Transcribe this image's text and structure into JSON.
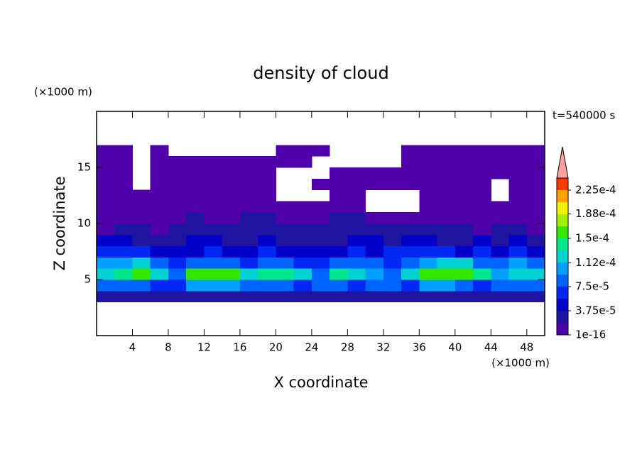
{
  "chart_data": {
    "type": "contour",
    "title": "density of cloud",
    "xlabel": "X coordinate",
    "ylabel": "Z coordinate",
    "x_unit": "(×1000 m)",
    "y_unit": "(×1000 m)",
    "annotation": "t=540000 s",
    "xlim": [
      0,
      50
    ],
    "ylim": [
      0,
      20
    ],
    "xticks": [
      4,
      8,
      12,
      16,
      20,
      24,
      28,
      32,
      36,
      40,
      44,
      48
    ],
    "yticks": [
      5,
      10,
      15
    ],
    "x": [
      1,
      3,
      5,
      7,
      9,
      11,
      13,
      15,
      17,
      19,
      21,
      23,
      25,
      27,
      29,
      31,
      33,
      35,
      37,
      39,
      41,
      43,
      45,
      47,
      49
    ],
    "y": [
      3.5,
      4.5,
      5.5,
      6.5,
      7.5,
      8.5,
      9.5,
      10.5,
      11.5,
      12.5,
      13.5,
      14.5,
      15.5,
      16.5
    ],
    "values": [
      [
        2e-05,
        2e-05,
        2e-05,
        2e-05,
        2e-05,
        2e-05,
        2e-05,
        2e-05,
        2e-05,
        2e-05,
        2e-05,
        2e-05,
        2e-05,
        2e-05,
        2e-05,
        2e-05,
        2e-05,
        2e-05,
        2e-05,
        2e-05,
        2e-05,
        2e-05,
        2e-05,
        2e-05,
        2e-05
      ],
      [
        8e-05,
        9e-05,
        8e-05,
        7e-05,
        6e-05,
        0.0001,
        0.0001,
        0.0001,
        9e-05,
        8e-05,
        9e-05,
        7e-05,
        9e-05,
        8e-05,
        7e-05,
        9e-05,
        8e-05,
        7e-05,
        0.0001,
        0.0001,
        9e-05,
        7e-05,
        8e-05,
        9e-05,
        8e-05
      ],
      [
        0.00013,
        0.00014,
        0.00015,
        0.00012,
        9e-05,
        0.000155,
        0.000165,
        0.00016,
        0.00012,
        0.000145,
        0.00014,
        0.00012,
        8e-05,
        0.000135,
        0.00013,
        0.00011,
        9e-05,
        0.00012,
        0.00015,
        0.000155,
        0.00015,
        0.00014,
        0.00011,
        0.00013,
        0.00012
      ],
      [
        0.0001,
        0.00011,
        0.00012,
        9e-05,
        7e-05,
        8e-05,
        9e-05,
        8e-05,
        7e-05,
        9e-05,
        8e-05,
        7e-05,
        6e-05,
        8e-05,
        9e-05,
        8e-05,
        7e-05,
        9e-05,
        0.00011,
        0.00012,
        0.000115,
        9e-05,
        8e-05,
        0.0001,
        9e-05
      ],
      [
        6e-05,
        7e-05,
        6e-05,
        5e-05,
        5e-05,
        5e-05,
        6e-05,
        5e-05,
        5e-05,
        6e-05,
        5e-05,
        4e-05,
        4e-05,
        5e-05,
        6e-05,
        5e-05,
        6e-05,
        6e-05,
        7e-05,
        6e-05,
        5e-05,
        6e-05,
        5e-05,
        6e-05,
        5e-05
      ],
      [
        4e-05,
        4.5e-05,
        3.5e-05,
        3e-05,
        3e-05,
        4e-05,
        4e-05,
        3e-05,
        3e-05,
        4e-05,
        3e-05,
        3e-05,
        3e-05,
        3e-05,
        4e-05,
        4e-05,
        3e-05,
        4e-05,
        4e-05,
        3e-05,
        3e-05,
        4e-05,
        3e-05,
        4e-05,
        3e-05
      ],
      [
        1.5e-05,
        2e-05,
        2e-05,
        1.5e-05,
        2e-05,
        2.5e-05,
        2e-05,
        2e-05,
        2.5e-05,
        3e-05,
        2.5e-05,
        2e-05,
        2.5e-05,
        2e-05,
        2.5e-05,
        3e-05,
        2.5e-05,
        2e-05,
        2e-05,
        2.5e-05,
        2e-05,
        1.5e-05,
        2e-05,
        2e-05,
        1.5e-05
      ],
      [
        1e-05,
        1e-05,
        1.5e-05,
        1e-05,
        1e-05,
        2e-05,
        1.5e-05,
        1e-05,
        2e-05,
        2e-05,
        1.5e-05,
        1e-05,
        1e-05,
        2e-05,
        2e-05,
        1.5e-05,
        1e-05,
        1e-05,
        1e-05,
        1.5e-05,
        1e-05,
        1e-05,
        1e-05,
        1e-05,
        1e-05
      ],
      [
        1e-16,
        1e-16,
        1e-16,
        1e-16,
        1e-16,
        1e-16,
        1e-16,
        1e-16,
        1e-16,
        1e-16,
        1e-16,
        1e-16,
        1e-16,
        1e-16,
        1e-16,
        null,
        null,
        null,
        1e-16,
        1e-16,
        1e-16,
        1e-16,
        1e-16,
        1e-16,
        1e-16
      ],
      [
        1e-16,
        1e-16,
        1e-16,
        1e-16,
        1e-16,
        1e-16,
        1e-16,
        1e-16,
        1e-16,
        1e-16,
        null,
        null,
        null,
        1e-16,
        1e-16,
        null,
        null,
        null,
        1e-16,
        1e-16,
        1e-16,
        1e-16,
        null,
        1e-16,
        1e-16
      ],
      [
        1e-16,
        1e-16,
        null,
        1e-16,
        1e-16,
        1e-16,
        1e-16,
        1e-16,
        1e-16,
        1e-16,
        null,
        null,
        1e-16,
        1e-16,
        1e-16,
        1e-16,
        1e-16,
        1e-16,
        1e-16,
        1e-16,
        1e-16,
        1e-16,
        null,
        1e-16,
        1e-16
      ],
      [
        1e-16,
        1e-16,
        null,
        1e-16,
        1e-16,
        1e-16,
        1e-16,
        1e-16,
        1e-16,
        1e-16,
        null,
        null,
        null,
        1e-16,
        1e-16,
        1e-16,
        1e-16,
        1e-16,
        1e-16,
        1e-16,
        1e-16,
        1e-16,
        1e-16,
        1e-16,
        1e-16
      ],
      [
        1e-16,
        1e-16,
        null,
        1e-16,
        1e-16,
        1e-16,
        1e-16,
        1e-16,
        1e-16,
        1e-16,
        1e-16,
        1e-16,
        null,
        null,
        null,
        null,
        null,
        1e-16,
        1e-16,
        1e-16,
        1e-16,
        1e-16,
        1e-16,
        1e-16,
        1e-16
      ],
      [
        1e-16,
        1e-16,
        null,
        1e-16,
        null,
        null,
        null,
        null,
        null,
        null,
        1e-16,
        1e-16,
        1e-16,
        null,
        null,
        null,
        null,
        1e-16,
        1e-16,
        1e-16,
        1e-16,
        1e-16,
        1e-16,
        1e-16,
        1e-16
      ]
    ],
    "levels": [
      1e-16,
      1.875e-05,
      3.75e-05,
      5.625e-05,
      7.5e-05,
      9.375e-05,
      0.0001125,
      0.00013125,
      0.00015,
      0.00016875,
      0.0001875,
      0.00020625,
      0.000225,
      0.00024375
    ],
    "colors": [
      "#5000a8",
      "#1e14a0",
      "#0000c8",
      "#0028f0",
      "#0064ff",
      "#00a0ff",
      "#00d2d2",
      "#00e68c",
      "#32e600",
      "#a0f000",
      "#f0f000",
      "#ffa000",
      "#ff3c00"
    ],
    "extend_color": "#ffa0a0",
    "cbar_ticks": [
      {
        "value": 1e-16,
        "label": "1e-16"
      },
      {
        "value": 3.75e-05,
        "label": "3.75e-5"
      },
      {
        "value": 7.5e-05,
        "label": "7.5e-5"
      },
      {
        "value": 0.000112,
        "label": "1.12e-4"
      },
      {
        "value": 0.00015,
        "label": "1.5e-4"
      },
      {
        "value": 0.000188,
        "label": "1.88e-4"
      },
      {
        "value": 0.000225,
        "label": "2.25e-4"
      }
    ]
  }
}
